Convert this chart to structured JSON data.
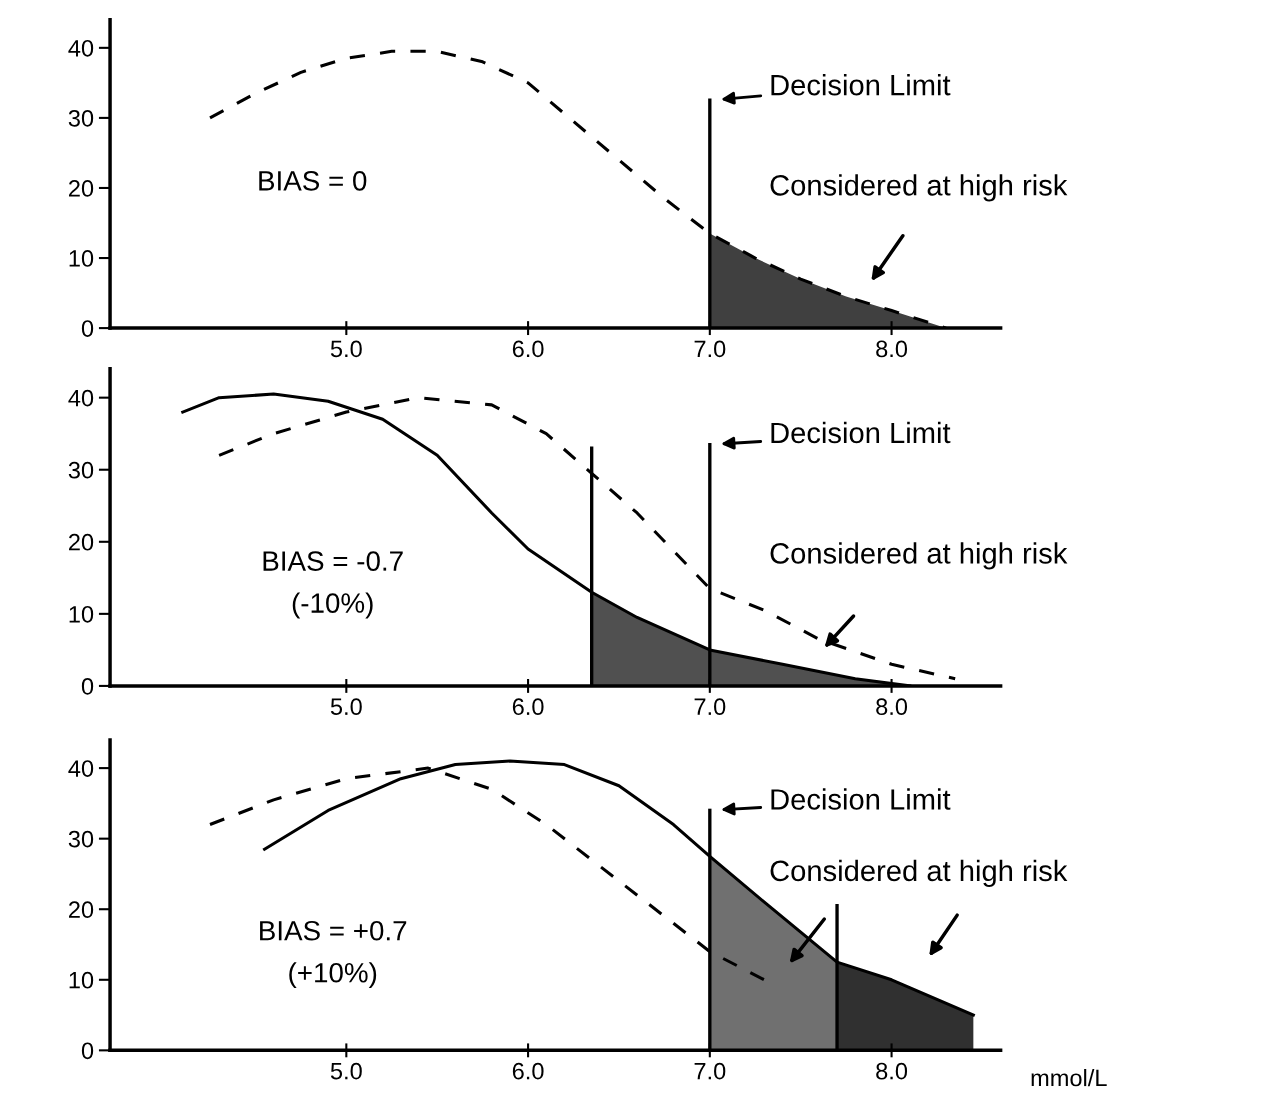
{
  "chart_data": [
    {
      "type": "line",
      "xlim": [
        3.7,
        8.6
      ],
      "ylim": [
        0,
        44
      ],
      "xticks": [
        {
          "value": 5,
          "label": "5.0"
        },
        {
          "value": 6,
          "label": "6.0"
        },
        {
          "value": 7,
          "label": "7.0"
        },
        {
          "value": 8,
          "label": "8.0"
        }
      ],
      "yticks": [
        0,
        10,
        20,
        30,
        40
      ],
      "series": [
        {
          "type": "line",
          "line_style": "dashed",
          "color": "#000000",
          "x": [
            4.25,
            4.5,
            4.75,
            5.0,
            5.25,
            5.5,
            5.75,
            6.0,
            6.25,
            6.5,
            6.75,
            7.0,
            7.25,
            7.5,
            7.75,
            8.0,
            8.3
          ],
          "values": [
            30,
            33.5,
            36.5,
            38.5,
            39.5,
            39.5,
            38,
            35,
            29.5,
            24,
            18.5,
            13.5,
            10,
            7,
            4.5,
            2.5,
            0
          ]
        },
        {
          "type": "area",
          "color": "#404040",
          "x": [
            7.0,
            7.25,
            7.5,
            7.75,
            8.0,
            8.3
          ],
          "values": [
            13.5,
            10,
            7,
            4.5,
            2.5,
            0
          ]
        }
      ],
      "ref_lines": [
        {
          "axis": "x",
          "value": 7.0,
          "label": "Decision Limit",
          "color": "#000000"
        }
      ],
      "annotations": [
        "BIAS = 0",
        "Considered at high risk"
      ]
    },
    {
      "type": "line",
      "xlim": [
        3.7,
        8.6
      ],
      "ylim": [
        0,
        44
      ],
      "xticks": [
        {
          "value": 5,
          "label": "5.0"
        },
        {
          "value": 6,
          "label": "6.0"
        },
        {
          "value": 7,
          "label": "7.0"
        },
        {
          "value": 8,
          "label": "8.0"
        }
      ],
      "yticks": [
        0,
        10,
        20,
        30,
        40
      ],
      "series": [
        {
          "type": "line",
          "line_style": "dashed",
          "color": "#000000",
          "x": [
            4.3,
            4.6,
            5.0,
            5.4,
            5.8,
            6.1,
            6.35,
            6.6,
            7.0,
            7.3,
            7.6,
            8.0,
            8.35
          ],
          "values": [
            32,
            35,
            38,
            40,
            39,
            35,
            29.5,
            24,
            13.5,
            10.5,
            6.5,
            3,
            1
          ]
        },
        {
          "type": "line",
          "line_style": "solid",
          "color": "#000000",
          "x": [
            4.1,
            4.3,
            4.6,
            4.9,
            5.2,
            5.5,
            5.8,
            6.0,
            6.35,
            6.6,
            7.0,
            7.4,
            7.8,
            8.1
          ],
          "values": [
            38,
            40,
            40.5,
            39.5,
            37,
            32,
            24,
            19,
            13,
            9.5,
            5,
            3,
            1,
            0
          ]
        },
        {
          "type": "area",
          "color": "#505050",
          "x": [
            6.35,
            6.6,
            7.0,
            7.4,
            7.8,
            8.1
          ],
          "values": [
            13,
            9.5,
            5,
            3,
            1,
            0
          ]
        }
      ],
      "ref_lines": [
        {
          "axis": "x",
          "value": 6.35,
          "color": "#000000"
        },
        {
          "axis": "x",
          "value": 7.0,
          "label": "Decision Limit",
          "color": "#000000"
        }
      ],
      "annotations": [
        "BIAS = -0.7\n(-10%)",
        "Considered at high risk"
      ]
    },
    {
      "type": "line",
      "xlim": [
        3.7,
        8.6
      ],
      "ylim": [
        0,
        44
      ],
      "xlabel": "mmol/L",
      "xticks": [
        {
          "value": 5,
          "label": "5.0"
        },
        {
          "value": 6,
          "label": "6.0"
        },
        {
          "value": 7,
          "label": "7.0"
        },
        {
          "value": 8,
          "label": "8.0"
        }
      ],
      "yticks": [
        0,
        10,
        20,
        30,
        40
      ],
      "series": [
        {
          "type": "line",
          "line_style": "dashed",
          "color": "#000000",
          "x": [
            4.25,
            4.6,
            5.0,
            5.45,
            5.8,
            6.1,
            6.5,
            7.0,
            7.3
          ],
          "values": [
            32,
            35.5,
            38.5,
            40,
            37,
            32,
            24,
            14,
            10
          ]
        },
        {
          "type": "line",
          "line_style": "solid",
          "color": "#000000",
          "x": [
            4.55,
            4.9,
            5.3,
            5.6,
            5.9,
            6.2,
            6.5,
            6.8,
            7.0,
            7.3,
            7.7,
            8.0,
            8.45
          ],
          "values": [
            28.5,
            34,
            38.5,
            40.5,
            41,
            40.5,
            37.5,
            32,
            27.5,
            21,
            12.5,
            10,
            5
          ]
        },
        {
          "type": "area",
          "color": "#707070",
          "x": [
            7.0,
            7.3,
            7.7
          ],
          "values": [
            27.5,
            21,
            12.5
          ]
        },
        {
          "type": "area",
          "color": "#303030",
          "x": [
            7.7,
            8.0,
            8.45
          ],
          "values": [
            12.5,
            10,
            5
          ]
        }
      ],
      "ref_lines": [
        {
          "axis": "x",
          "value": 7.0,
          "label": "Decision Limit",
          "color": "#000000"
        },
        {
          "axis": "x",
          "value": 7.7,
          "color": "#000000"
        }
      ],
      "annotations": [
        "BIAS = +0.7\n(+10%)",
        "Considered at high risk"
      ]
    }
  ]
}
